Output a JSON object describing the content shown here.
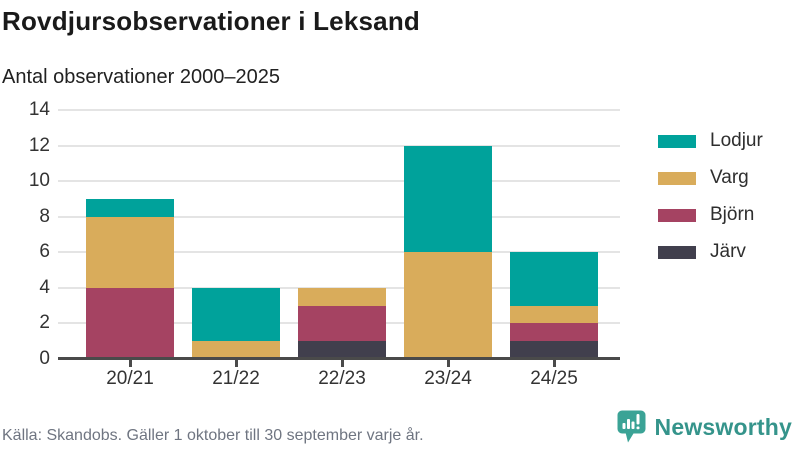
{
  "header": {
    "title": "Rovdjursobservationer i Leksand",
    "subtitle": "Antal observationer 2000–2025"
  },
  "chart_data": {
    "type": "bar",
    "stacked": true,
    "title": "Rovdjursobservationer i Leksand",
    "subtitle": "Antal observationer 2000–2025",
    "categories": [
      "20/21",
      "21/22",
      "22/23",
      "23/24",
      "24/25"
    ],
    "series": [
      {
        "name": "Lodjur",
        "color": "#00a29b",
        "values": [
          1,
          3,
          0,
          6,
          3
        ]
      },
      {
        "name": "Varg",
        "color": "#d9ac5b",
        "values": [
          4,
          1,
          1,
          6,
          1
        ]
      },
      {
        "name": "Björn",
        "color": "#a54362",
        "values": [
          4,
          0,
          2,
          0,
          1
        ]
      },
      {
        "name": "Järv",
        "color": "#413f4d",
        "values": [
          0,
          0,
          1,
          0,
          1
        ]
      }
    ],
    "totals": [
      9,
      4,
      4,
      12,
      6
    ],
    "ylim": [
      0,
      14
    ],
    "yticks": [
      0,
      2,
      4,
      6,
      8,
      10,
      12,
      14
    ],
    "xlabel": "",
    "ylabel": "",
    "grid": true,
    "legend_position": "right",
    "legend_order": [
      "Lodjur",
      "Varg",
      "Björn",
      "Järv"
    ]
  },
  "footer": {
    "source": "Källa: Skandobs. Gäller 1 oktober till 30 september varje år."
  },
  "branding": {
    "name": "Newsworthy",
    "icon": "bar-chart-speech-bubble-icon",
    "icon_color": "#3ba396",
    "text_color": "#35948b"
  },
  "colors": {
    "background": "#ffffff",
    "gridline": "#e4e4e4",
    "axis": "#4a4a4a",
    "tick_label": "#333333",
    "title": "#1a1a1a",
    "subtitle": "#212121",
    "footer": "#6f7581"
  }
}
